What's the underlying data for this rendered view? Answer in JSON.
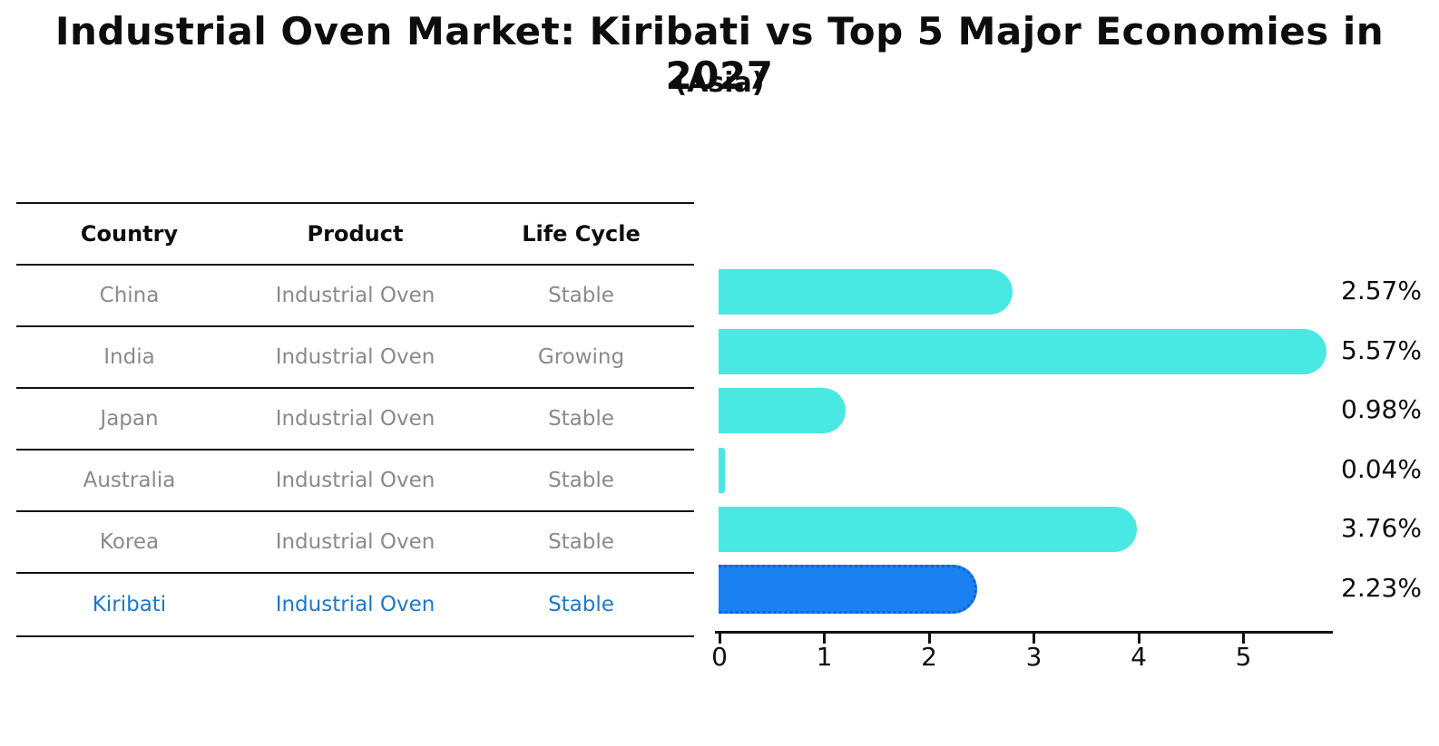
{
  "title": "Industrial Oven Market: Kiribati vs Top 5 Major Economies in 2027",
  "subtitle": "(Asia)",
  "table": {
    "headers": [
      "Country",
      "Product",
      "Life Cycle"
    ],
    "rows": [
      {
        "country": "China",
        "product": "Industrial Oven",
        "life_cycle": "Stable",
        "highlighted": false
      },
      {
        "country": "India",
        "product": "Industrial Oven",
        "life_cycle": "Growing",
        "highlighted": false
      },
      {
        "country": "Japan",
        "product": "Industrial Oven",
        "life_cycle": "Stable",
        "highlighted": false
      },
      {
        "country": "Australia",
        "product": "Industrial Oven",
        "life_cycle": "Stable",
        "highlighted": false
      },
      {
        "country": "Korea",
        "product": "Industrial Oven",
        "life_cycle": "Stable",
        "highlighted": false
      },
      {
        "country": "Kiribati",
        "product": "Industrial Oven",
        "life_cycle": "Stable",
        "highlighted": true
      }
    ]
  },
  "chart_data": {
    "type": "bar",
    "orientation": "horizontal",
    "title": "Industrial Oven Market: Kiribati vs Top 5 Major Economies in 2027 (Asia)",
    "categories": [
      "China",
      "India",
      "Japan",
      "Australia",
      "Korea",
      "Kiribati"
    ],
    "values": [
      2.57,
      5.57,
      0.98,
      0.04,
      3.76,
      2.23
    ],
    "value_labels": [
      "2.57%",
      "5.57%",
      "0.98%",
      "0.04%",
      "3.76%",
      "2.23%"
    ],
    "x_ticks": [
      "0",
      "1",
      "2",
      "3",
      "4",
      "5"
    ],
    "xlim": [
      0,
      5.85
    ],
    "grid": false,
    "legend": "none",
    "highlight_index": 5,
    "bar_color": "#4ae8e2",
    "highlight_color": "#1b80f0",
    "highlight_border_color": "#0e63d8",
    "label_color": "#0d0d0d",
    "muted_text_color": "#8a8a8a",
    "highlight_text_color": "#1e78ce"
  }
}
